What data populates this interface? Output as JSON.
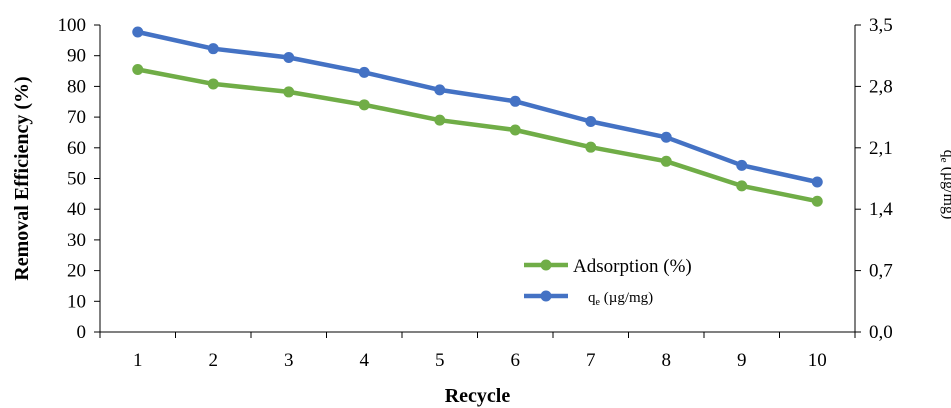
{
  "chart_data": {
    "type": "line",
    "x": [
      1,
      2,
      3,
      4,
      5,
      6,
      7,
      8,
      9,
      10
    ],
    "xlabel": "Recycle",
    "ylabel_left": "Removal Efficiency (%)",
    "ylabel_right": "qe (µg/mg)",
    "ylim_left": [
      0,
      100
    ],
    "ylim_right": [
      0,
      3.5
    ],
    "yticks_left": [
      "0",
      "10",
      "20",
      "30",
      "40",
      "50",
      "60",
      "70",
      "80",
      "90",
      "100"
    ],
    "yticks_right": [
      "0,0",
      "0,7",
      "1,4",
      "2,1",
      "2,8",
      "3,5"
    ],
    "series": [
      {
        "name": "Adsorption (%)",
        "axis": "left",
        "color": "#70ad47",
        "values": [
          85.5,
          80.8,
          78.2,
          74.0,
          69.0,
          65.8,
          60.2,
          55.6,
          47.6,
          42.6
        ]
      },
      {
        "name": "qe (µg/mg)",
        "legend_main": "q",
        "legend_sub": "e",
        "legend_rest": " (µg/mg)",
        "axis": "right",
        "color": "#4472c4",
        "values": [
          3.42,
          3.23,
          3.13,
          2.96,
          2.76,
          2.63,
          2.4,
          2.22,
          1.9,
          1.71
        ]
      }
    ],
    "legend_position": "bottom-right",
    "grid": false
  }
}
